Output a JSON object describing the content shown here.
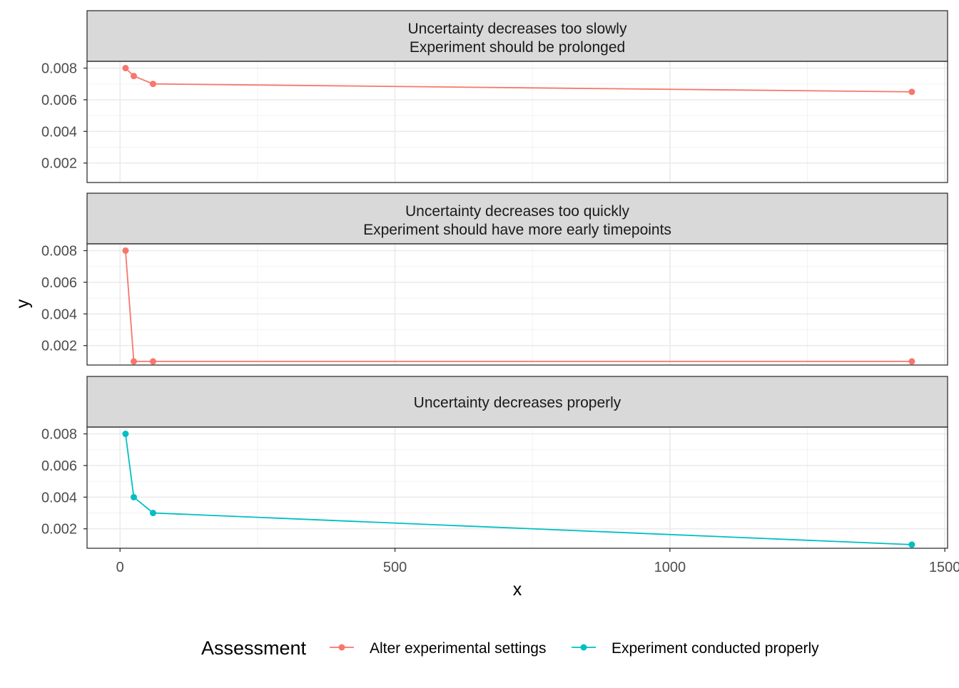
{
  "chart_data": {
    "type": "line",
    "xlabel": "x",
    "ylabel": "y",
    "xlim": [
      -60,
      1505
    ],
    "ylim": [
      0.00077,
      0.00843
    ],
    "x_ticks": [
      0,
      500,
      1000,
      1500
    ],
    "x_tick_labels": [
      "0",
      "500",
      "1000",
      "1500"
    ],
    "y_ticks": [
      0.002,
      0.004,
      0.006,
      0.008
    ],
    "y_tick_labels": [
      "0.002",
      "0.004",
      "0.006",
      "0.008"
    ],
    "grid": true,
    "legend": {
      "position": "bottom",
      "title": "Assessment",
      "entries": [
        {
          "label": "Alter experimental settings",
          "color": "#F8766D"
        },
        {
          "label": "Experiment conducted properly",
          "color": "#00BFC4"
        }
      ]
    },
    "panels": [
      {
        "strip": [
          "Uncertainty decreases too slowly",
          "Experiment should be prolonged"
        ],
        "series": [
          {
            "group": "Alter experimental settings",
            "color": "#F8766D",
            "x": [
              10,
              25,
              60,
              1440
            ],
            "y": [
              0.008,
              0.0075,
              0.007,
              0.0065
            ]
          }
        ]
      },
      {
        "strip": [
          "Uncertainty decreases too quickly",
          "Experiment should have more early timepoints"
        ],
        "series": [
          {
            "group": "Alter experimental settings",
            "color": "#F8766D",
            "x": [
              10,
              25,
              60,
              1440
            ],
            "y": [
              0.008,
              0.001,
              0.001,
              0.001
            ]
          }
        ]
      },
      {
        "strip": [
          "Uncertainty decreases properly"
        ],
        "series": [
          {
            "group": "Experiment conducted properly",
            "color": "#00BFC4",
            "x": [
              10,
              25,
              60,
              1440
            ],
            "y": [
              0.008,
              0.004,
              0.003,
              0.001
            ]
          }
        ]
      }
    ]
  }
}
